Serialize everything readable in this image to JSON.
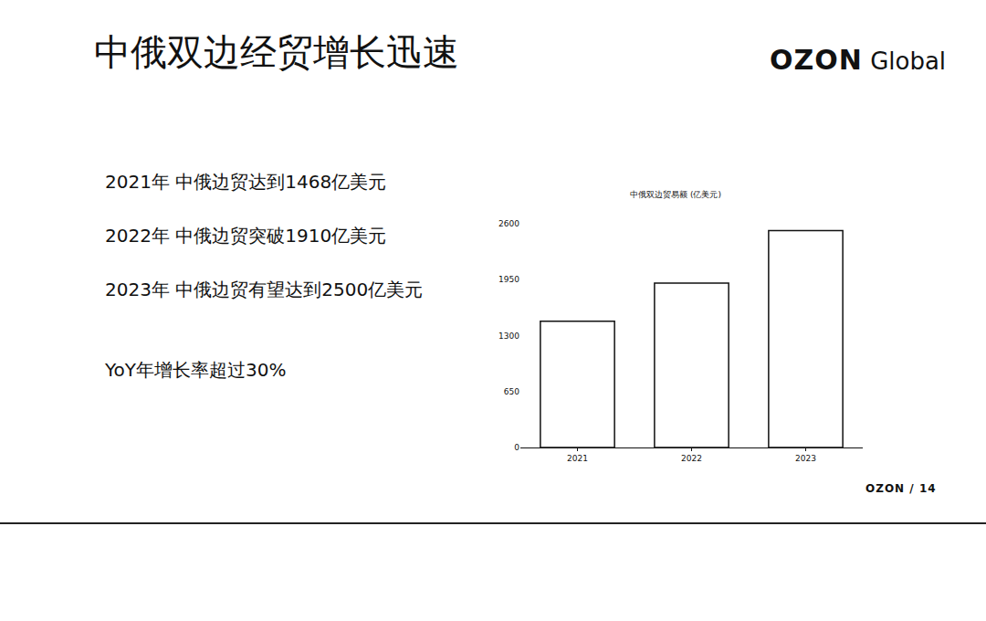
{
  "slide": {
    "title": "中俄双边经贸增长迅速",
    "logo": "OZON Global",
    "bullets": [
      "2021年 中俄边贸达到1468亿美元",
      "2022年 中俄边贸突破1910亿美元",
      "2023年 中俄边贸有望达到2500亿美元",
      "YoY年增长率超过30%"
    ],
    "footer": "OZON / 14"
  },
  "chart_data": {
    "type": "bar",
    "title": "中俄双边贸易额 (亿美元)",
    "categories": [
      "2021",
      "2022",
      "2023"
    ],
    "values": [
      1468,
      1910,
      2520
    ],
    "color": "#ffffff",
    "ylim": [
      0,
      2600
    ],
    "yticks": [
      0,
      650,
      1300,
      1950,
      2600
    ],
    "grid": false
  }
}
